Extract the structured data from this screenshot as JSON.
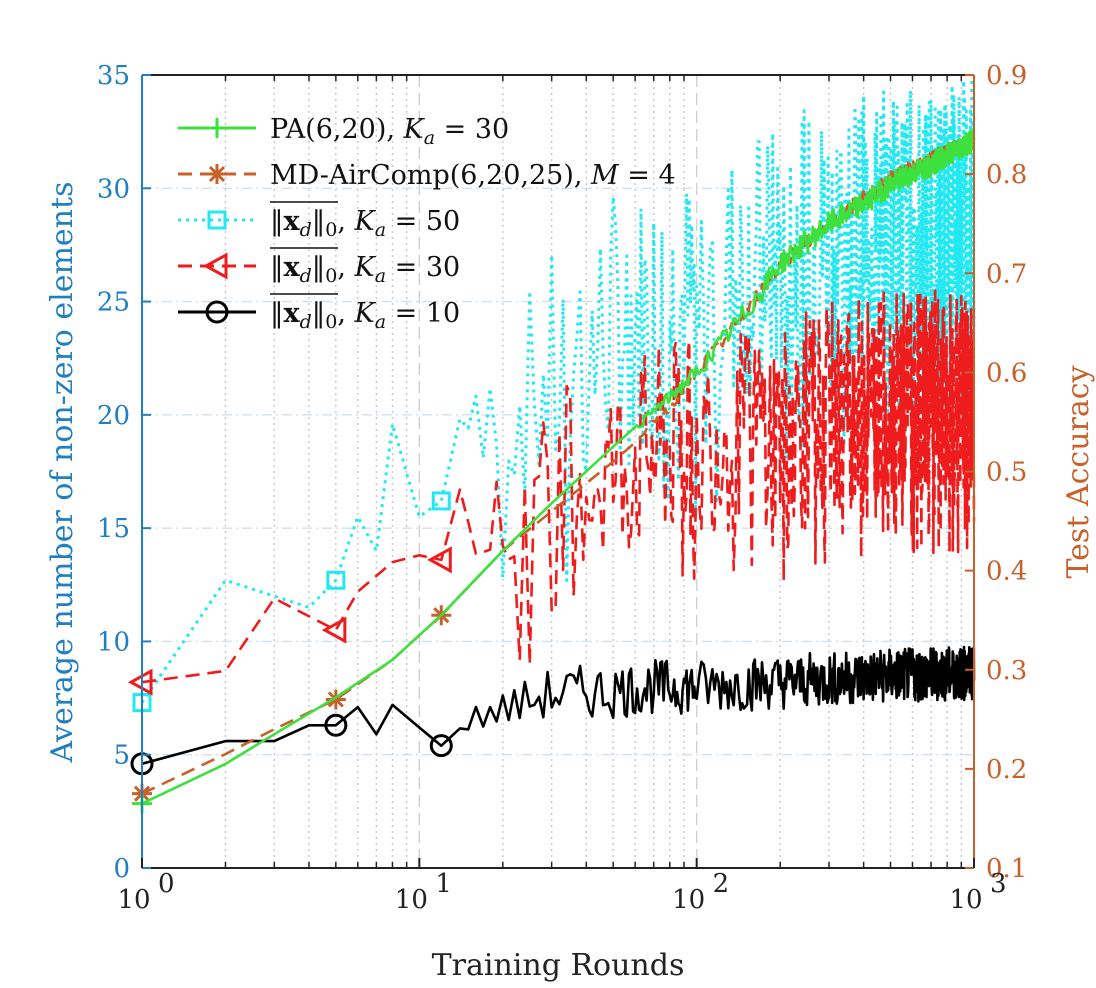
{
  "chart_data": {
    "type": "line",
    "title": "",
    "xlabel": "Training Rounds",
    "ylabel_left": "Average number of non-zero elements",
    "ylabel_right": "Test Accuracy",
    "x_scale": "log",
    "xlim": [
      1,
      1000
    ],
    "ylim_left": [
      0,
      35
    ],
    "ylim_right": [
      0.1,
      0.9
    ],
    "x_ticks": [
      {
        "value": 1,
        "base": "10",
        "exp": "0"
      },
      {
        "value": 10,
        "base": "10",
        "exp": "1"
      },
      {
        "value": 100,
        "base": "10",
        "exp": "2"
      },
      {
        "value": 1000,
        "base": "10",
        "exp": "3"
      }
    ],
    "y_ticks_left": [
      "0",
      "5",
      "10",
      "15",
      "20",
      "25",
      "30",
      "35"
    ],
    "y_ticks_right": [
      "0.1",
      "0.2",
      "0.3",
      "0.4",
      "0.5",
      "0.6",
      "0.7",
      "0.8",
      "0.9"
    ],
    "grid": true,
    "legend_position": "top-left",
    "colors": {
      "left_axis": "#1f7fc0",
      "right_axis": "#c8602a",
      "pa": "#3ee03e",
      "md": "#c8602a",
      "ka50": "#22e8f2",
      "ka30": "#ee1c1c",
      "ka10": "#000000"
    },
    "series": [
      {
        "id": "pa",
        "name": "PA(6,20), K_a = 30",
        "legend_text": "PA(6,20),",
        "legend_math": "K",
        "legend_sub": "a",
        "legend_tail": " = 30",
        "axis": "right",
        "marker": "plus",
        "style": "solid",
        "points": [
          [
            1,
            0.165
          ],
          [
            2,
            0.205
          ],
          [
            3,
            0.235
          ],
          [
            5,
            0.272
          ],
          [
            8,
            0.31
          ],
          [
            12,
            0.355
          ],
          [
            20,
            0.42
          ],
          [
            30,
            0.468
          ],
          [
            50,
            0.525
          ],
          [
            80,
            0.575
          ],
          [
            100,
            0.6
          ],
          [
            150,
            0.66
          ],
          [
            200,
            0.71
          ],
          [
            300,
            0.75
          ],
          [
            400,
            0.77
          ],
          [
            500,
            0.79
          ],
          [
            700,
            0.81
          ],
          [
            1000,
            0.835
          ]
        ],
        "marker_points": [
          [
            1,
            0.165
          ]
        ]
      },
      {
        "id": "md",
        "name": "MD-AirComp(6,20,25), M = 4",
        "legend_text": "MD-AirComp(6,20,25),",
        "legend_math": "M",
        "legend_sub": "",
        "legend_tail": " = 4",
        "axis": "right",
        "marker": "asterisk",
        "style": "dashed",
        "points": [
          [
            1,
            0.175
          ],
          [
            2,
            0.215
          ],
          [
            3,
            0.24
          ],
          [
            5,
            0.27
          ],
          [
            8,
            0.31
          ],
          [
            12,
            0.355
          ],
          [
            20,
            0.42
          ],
          [
            30,
            0.46
          ],
          [
            50,
            0.51
          ],
          [
            80,
            0.565
          ],
          [
            100,
            0.6
          ],
          [
            150,
            0.66
          ],
          [
            200,
            0.71
          ],
          [
            300,
            0.75
          ],
          [
            400,
            0.775
          ],
          [
            500,
            0.795
          ],
          [
            700,
            0.815
          ],
          [
            1000,
            0.835
          ]
        ],
        "marker_points": [
          [
            1,
            0.175
          ],
          [
            5,
            0.27
          ],
          [
            12,
            0.355
          ]
        ]
      },
      {
        "id": "ka50",
        "name": "||x_d||_0, K_a = 50",
        "legend_text": "‖x",
        "legend_math": "K",
        "legend_sub": "a",
        "legend_tail": " = 50",
        "axis": "left",
        "marker": "square",
        "style": "dotted",
        "points": [
          [
            1,
            7.3
          ],
          [
            2,
            12.7
          ],
          [
            4,
            11.5
          ],
          [
            5,
            12.7
          ],
          [
            6,
            15.5
          ],
          [
            7,
            14.0
          ],
          [
            8,
            19.6
          ],
          [
            10,
            15.5
          ],
          [
            12,
            16.2
          ],
          [
            15,
            21.5
          ],
          [
            20,
            20.0
          ],
          [
            30,
            21.5
          ],
          [
            40,
            22.5
          ],
          [
            50,
            24.0
          ],
          [
            70,
            24.5
          ],
          [
            100,
            25.0
          ],
          [
            150,
            26.5
          ],
          [
            200,
            27.0
          ],
          [
            300,
            28.0
          ],
          [
            500,
            28.5
          ],
          [
            1000,
            29.0
          ]
        ],
        "marker_points": [
          [
            1,
            7.3
          ],
          [
            5,
            12.7
          ],
          [
            12,
            16.2
          ]
        ]
      },
      {
        "id": "ka30",
        "name": "||x_d||_0, K_a = 30",
        "legend_text": "‖x",
        "legend_math": "K",
        "legend_sub": "a",
        "legend_tail": " = 30",
        "axis": "left",
        "marker": "triangle-left",
        "style": "dashed",
        "points": [
          [
            1,
            8.2
          ],
          [
            2,
            8.7
          ],
          [
            3,
            11.9
          ],
          [
            5,
            10.5
          ],
          [
            6,
            12.2
          ],
          [
            8,
            13.5
          ],
          [
            10,
            13.8
          ],
          [
            12,
            13.6
          ],
          [
            14,
            16.7
          ],
          [
            20,
            14.5
          ],
          [
            30,
            16.5
          ],
          [
            40,
            17.5
          ],
          [
            50,
            17.5
          ],
          [
            70,
            18.5
          ],
          [
            100,
            19.0
          ],
          [
            150,
            19.5
          ],
          [
            200,
            19.5
          ],
          [
            300,
            20.5
          ],
          [
            500,
            21.0
          ],
          [
            1000,
            21.0
          ]
        ],
        "marker_points": [
          [
            1,
            8.2
          ],
          [
            5,
            10.5
          ],
          [
            12,
            13.6
          ]
        ]
      },
      {
        "id": "ka10",
        "name": "||x_d||_0, K_a = 10",
        "legend_text": "‖x",
        "legend_math": "K",
        "legend_sub": "a",
        "legend_tail": " = 10",
        "axis": "left",
        "marker": "circle",
        "style": "solid",
        "points": [
          [
            1,
            4.6
          ],
          [
            2,
            5.6
          ],
          [
            3,
            5.6
          ],
          [
            4,
            6.3
          ],
          [
            5,
            6.3
          ],
          [
            6,
            7.1
          ],
          [
            7,
            5.9
          ],
          [
            8,
            7.2
          ],
          [
            10,
            6.2
          ],
          [
            12,
            5.4
          ],
          [
            15,
            6.5
          ],
          [
            20,
            7.0
          ],
          [
            30,
            7.7
          ],
          [
            50,
            7.8
          ],
          [
            70,
            8.0
          ],
          [
            100,
            8.0
          ],
          [
            200,
            8.2
          ],
          [
            500,
            8.5
          ],
          [
            1000,
            8.6
          ]
        ],
        "marker_points": [
          [
            1,
            4.6
          ],
          [
            5,
            6.3
          ],
          [
            12,
            5.4
          ]
        ]
      }
    ]
  }
}
